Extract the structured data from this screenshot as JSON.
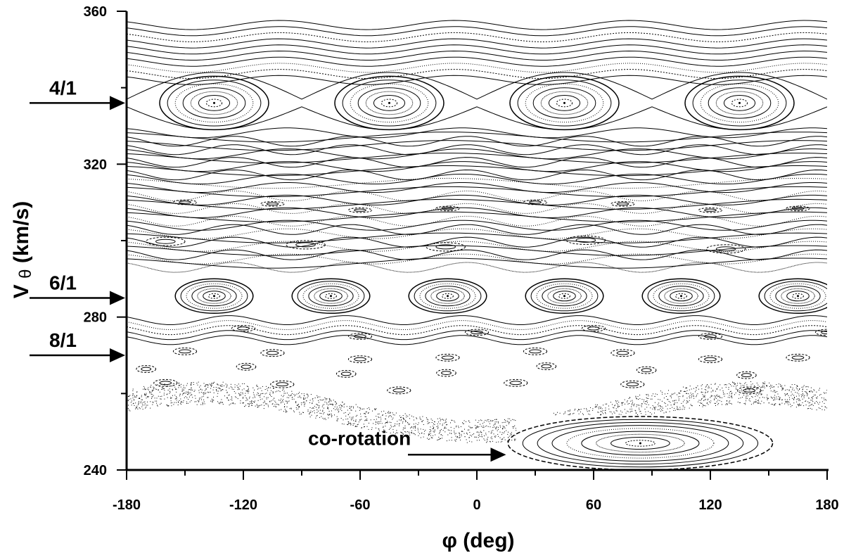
{
  "chart_data": {
    "type": "scatter",
    "title": "",
    "xlabel": "φ (deg)",
    "ylabel_main": "V",
    "ylabel_sub": "θ",
    "ylabel_unit": "(km/s)",
    "xlim": [
      -180,
      180
    ],
    "ylim": [
      240,
      360
    ],
    "x_ticks": [
      -180,
      -120,
      -60,
      0,
      60,
      120,
      180
    ],
    "x_tick_labels": [
      "-180",
      "-120",
      "-60",
      "0",
      "60",
      "120",
      "180"
    ],
    "y_ticks": [
      240,
      280,
      320,
      360
    ],
    "y_tick_labels": [
      "240",
      "280",
      "320",
      "360"
    ],
    "grid": false,
    "legend": "none",
    "annotations": [
      {
        "text": "4/1",
        "y": 336
      },
      {
        "text": "6/1",
        "y": 285
      },
      {
        "text": "8/1",
        "y": 270
      },
      {
        "text": "co-rotation",
        "x": 15,
        "y": 244
      }
    ],
    "resonance_islands": [
      {
        "name": "4/1",
        "centers_phi": [
          -135,
          -45,
          45,
          135
        ],
        "center_v": 336,
        "half_width_phi": 28,
        "half_height_v": 7
      },
      {
        "name": "6/1",
        "centers_phi": [
          -135,
          -75,
          -15,
          45,
          105,
          165
        ],
        "center_v": 285.5,
        "half_width_phi": 20,
        "half_height_v": 4.5
      },
      {
        "name": "co-rotation",
        "centers_phi": [
          84
        ],
        "center_v": 247,
        "half_width_phi": 68,
        "half_height_v": 7
      }
    ]
  }
}
